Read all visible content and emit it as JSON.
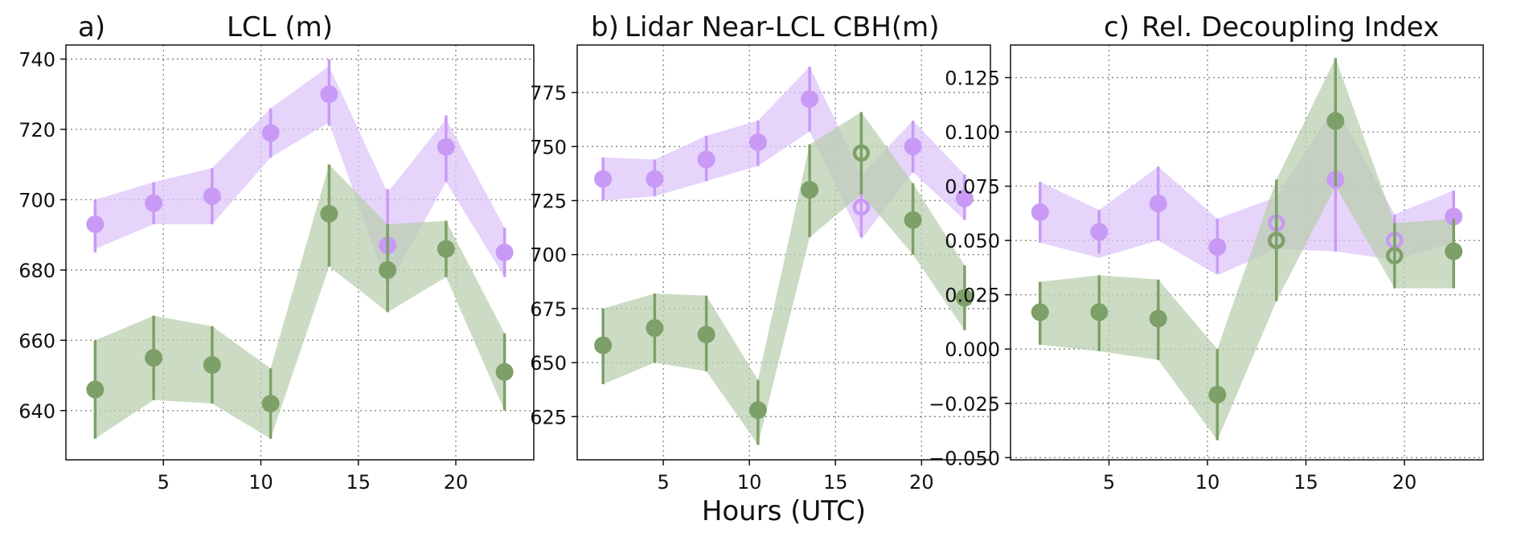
{
  "xlabel": "Hours (UTC)",
  "colors": {
    "purple": "#c99af5",
    "purple_band": "#dcc4fa",
    "green": "#7da068",
    "green_band": "#b9cfad",
    "grid": "#888888"
  },
  "chart_data": [
    {
      "type": "scatter",
      "letter": "a)",
      "title": "LCL (m)",
      "xlabel": "",
      "ylabel": "",
      "xlim": [
        0,
        24
      ],
      "ylim": [
        626,
        744
      ],
      "xticks": [
        5,
        10,
        15,
        20
      ],
      "yticks": [
        640,
        660,
        680,
        700,
        720,
        740
      ],
      "ytick_labels": [
        "640",
        "660",
        "680",
        "700",
        "720",
        "740"
      ],
      "grid": true,
      "series": [
        {
          "color": "purple",
          "x": [
            1.5,
            4.5,
            7.5,
            10.5,
            13.5,
            16.5,
            19.5,
            22.5
          ],
          "y": [
            693,
            699,
            701,
            719,
            730,
            687,
            715,
            685
          ],
          "err_low": [
            685,
            693,
            693,
            712,
            721,
            671,
            705,
            678
          ],
          "err_high": [
            700,
            705,
            709,
            726,
            740,
            703,
            724,
            692
          ],
          "band_low": [
            686,
            693,
            693,
            712,
            722,
            675,
            705,
            678
          ],
          "band_high": [
            700,
            705,
            709,
            726,
            738,
            702,
            723,
            692
          ],
          "hollow": [
            false,
            false,
            false,
            false,
            false,
            false,
            false,
            false
          ]
        },
        {
          "color": "green",
          "x": [
            1.5,
            4.5,
            7.5,
            10.5,
            13.5,
            16.5,
            19.5,
            22.5
          ],
          "y": [
            646,
            655,
            653,
            642,
            696,
            680,
            686,
            651
          ],
          "err_low": [
            632,
            643,
            642,
            632,
            681,
            668,
            678,
            640
          ],
          "err_high": [
            660,
            667,
            664,
            652,
            710,
            693,
            694,
            662
          ],
          "band_low": [
            632,
            643,
            642,
            632,
            681,
            668,
            678,
            640
          ],
          "band_high": [
            660,
            667,
            664,
            652,
            710,
            693,
            694,
            662
          ],
          "hollow": [
            false,
            false,
            false,
            false,
            false,
            false,
            false,
            false
          ]
        }
      ]
    },
    {
      "type": "scatter",
      "letter": "b)",
      "title": "Lidar Near-LCL CBH(m)",
      "xlabel": "",
      "ylabel": "",
      "xlim": [
        0,
        24
      ],
      "ylim": [
        605,
        797
      ],
      "xticks": [
        5,
        10,
        15,
        20
      ],
      "yticks": [
        625,
        650,
        675,
        700,
        725,
        750,
        775
      ],
      "ytick_labels": [
        "625",
        "650",
        "675",
        "700",
        "725",
        "750",
        "775"
      ],
      "grid": true,
      "series": [
        {
          "color": "purple",
          "x": [
            1.5,
            4.5,
            7.5,
            10.5,
            13.5,
            16.5,
            19.5,
            22.5
          ],
          "y": [
            735,
            735,
            744,
            752,
            772,
            722,
            750,
            726
          ],
          "err_low": [
            725,
            727,
            734,
            741,
            757,
            708,
            738,
            716
          ],
          "err_high": [
            745,
            744,
            755,
            762,
            787,
            737,
            762,
            737
          ],
          "band_low": [
            725,
            727,
            734,
            741,
            757,
            707,
            738,
            716
          ],
          "band_high": [
            745,
            744,
            755,
            762,
            787,
            737,
            762,
            737
          ],
          "hollow": [
            false,
            false,
            false,
            false,
            false,
            true,
            false,
            false
          ]
        },
        {
          "color": "green",
          "x": [
            1.5,
            4.5,
            7.5,
            10.5,
            13.5,
            16.5,
            19.5,
            22.5
          ],
          "y": [
            658,
            666,
            663,
            628,
            730,
            747,
            716,
            680
          ],
          "err_low": [
            640,
            650,
            646,
            612,
            708,
            728,
            700,
            665
          ],
          "err_high": [
            675,
            682,
            681,
            642,
            751,
            766,
            733,
            695
          ],
          "band_low": [
            640,
            650,
            646,
            612,
            708,
            728,
            700,
            665
          ],
          "band_high": [
            675,
            682,
            681,
            642,
            751,
            766,
            733,
            695
          ],
          "hollow": [
            false,
            false,
            false,
            false,
            false,
            true,
            false,
            false
          ]
        }
      ]
    },
    {
      "type": "scatter",
      "letter": "c)",
      "title": "Rel. Decoupling Index",
      "xlabel": "",
      "ylabel": "",
      "xlim": [
        0,
        24
      ],
      "ylim": [
        -0.051,
        0.14
      ],
      "xticks": [
        5,
        10,
        15,
        20
      ],
      "yticks": [
        -0.05,
        -0.025,
        0.0,
        0.025,
        0.05,
        0.075,
        0.1,
        0.125
      ],
      "ytick_labels": [
        "−0.050",
        "−0.025",
        "0.000",
        "0.025",
        "0.050",
        "0.075",
        "0.100",
        "0.125"
      ],
      "grid": true,
      "series": [
        {
          "color": "purple",
          "x": [
            1.5,
            4.5,
            7.5,
            10.5,
            13.5,
            16.5,
            19.5,
            22.5
          ],
          "y": [
            0.063,
            0.054,
            0.067,
            0.047,
            0.058,
            0.078,
            0.05,
            0.061
          ],
          "err_low": [
            0.049,
            0.044,
            0.05,
            0.035,
            0.046,
            0.045,
            0.041,
            0.049
          ],
          "err_high": [
            0.077,
            0.064,
            0.084,
            0.06,
            0.07,
            0.112,
            0.062,
            0.073
          ],
          "band_low": [
            0.049,
            0.042,
            0.05,
            0.034,
            0.046,
            0.045,
            0.041,
            0.049
          ],
          "band_high": [
            0.077,
            0.064,
            0.084,
            0.06,
            0.07,
            0.112,
            0.062,
            0.073
          ],
          "hollow": [
            false,
            false,
            false,
            false,
            true,
            false,
            true,
            false
          ]
        },
        {
          "color": "green",
          "x": [
            1.5,
            4.5,
            7.5,
            10.5,
            13.5,
            16.5,
            19.5,
            22.5
          ],
          "y": [
            0.017,
            0.017,
            0.014,
            -0.021,
            0.05,
            0.105,
            0.043,
            0.045
          ],
          "err_low": [
            0.002,
            -0.001,
            -0.005,
            -0.042,
            0.022,
            0.075,
            0.028,
            0.028
          ],
          "err_high": [
            0.031,
            0.034,
            0.032,
            0.0,
            0.078,
            0.134,
            0.058,
            0.06
          ],
          "band_low": [
            0.002,
            -0.001,
            -0.005,
            -0.042,
            0.022,
            0.075,
            0.028,
            0.028
          ],
          "band_high": [
            0.031,
            0.034,
            0.032,
            0.0,
            0.078,
            0.134,
            0.058,
            0.06
          ],
          "hollow": [
            false,
            false,
            false,
            false,
            true,
            false,
            true,
            false
          ]
        }
      ]
    }
  ]
}
